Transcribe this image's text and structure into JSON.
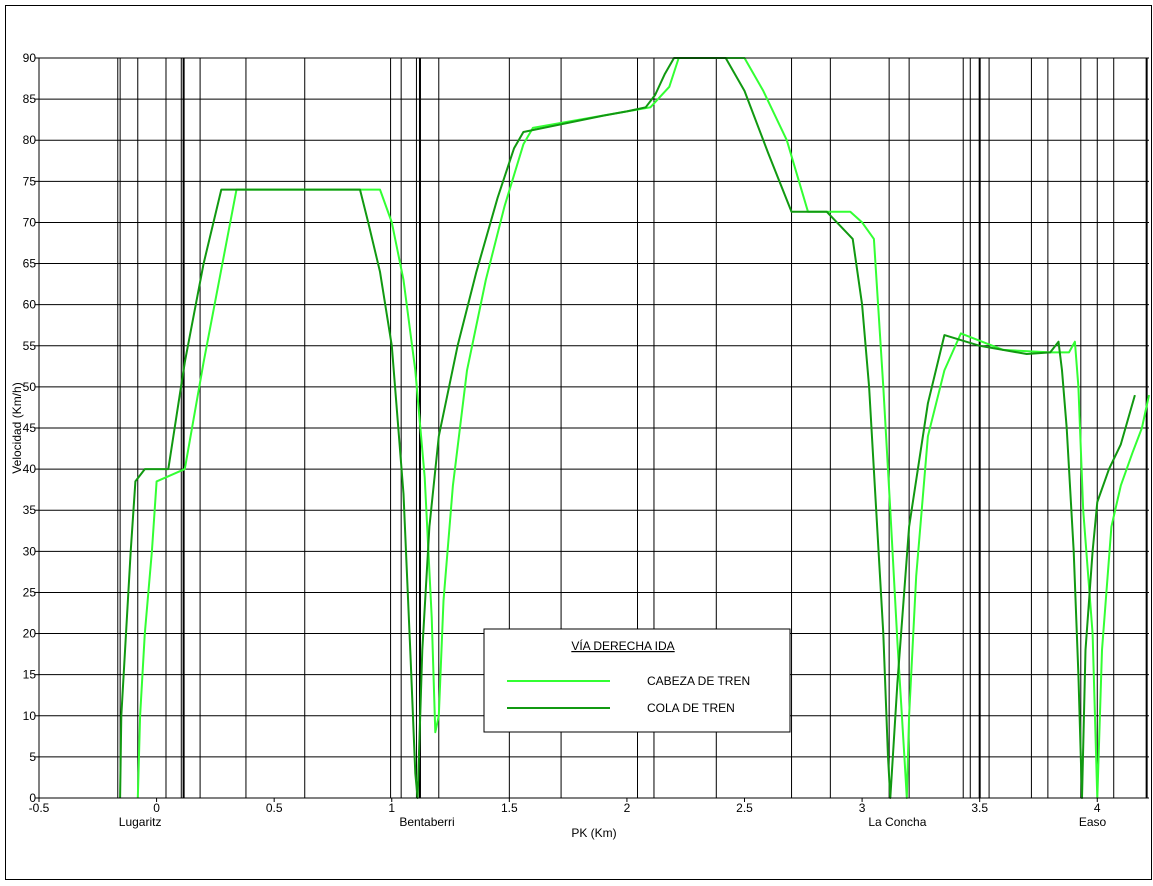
{
  "chart_data": {
    "type": "line",
    "title": "",
    "xlabel": "PK (Km)",
    "ylabel": "Velocidad (Km/h)",
    "xlim": [
      -0.5,
      4.22
    ],
    "ylim": [
      0,
      90
    ],
    "x_ticks": [
      -0.5,
      0,
      0.5,
      1,
      1.5,
      2,
      2.5,
      3,
      3.5,
      4
    ],
    "x_tick_labels": [
      "-0.5",
      "0",
      "0.5",
      "1",
      "1.5",
      "2",
      "2.5",
      "3",
      "3.5",
      "4"
    ],
    "y_ticks": [
      0,
      5,
      10,
      15,
      20,
      25,
      30,
      35,
      40,
      45,
      50,
      55,
      60,
      65,
      70,
      75,
      80,
      85,
      90
    ],
    "y_tick_labels": [
      "0",
      "5",
      "10",
      "15",
      "20",
      "25",
      "30",
      "35",
      "40",
      "45",
      "50",
      "55",
      "60",
      "65",
      "70",
      "75",
      "80",
      "85",
      "90"
    ],
    "horizontal_grid": true,
    "vertical_markers": [
      {
        "x": -0.165,
        "bold": false
      },
      {
        "x": -0.155,
        "bold": false
      },
      {
        "x": -0.08,
        "bold": false
      },
      {
        "x": 0.04,
        "bold": false
      },
      {
        "x": 0.105,
        "bold": false
      },
      {
        "x": 0.115,
        "bold": true
      },
      {
        "x": 0.185,
        "bold": false
      },
      {
        "x": 0.38,
        "bold": false
      },
      {
        "x": 0.63,
        "bold": false
      },
      {
        "x": 0.995,
        "bold": false
      },
      {
        "x": 1.04,
        "bold": false
      },
      {
        "x": 1.105,
        "bold": false
      },
      {
        "x": 1.12,
        "bold": true
      },
      {
        "x": 1.2,
        "bold": false
      },
      {
        "x": 1.5,
        "bold": false
      },
      {
        "x": 1.72,
        "bold": false
      },
      {
        "x": 2.045,
        "bold": false
      },
      {
        "x": 2.115,
        "bold": false
      },
      {
        "x": 2.38,
        "bold": false
      },
      {
        "x": 2.7,
        "bold": false
      },
      {
        "x": 2.865,
        "bold": false
      },
      {
        "x": 3.115,
        "bold": false
      },
      {
        "x": 3.2,
        "bold": false
      },
      {
        "x": 3.43,
        "bold": false
      },
      {
        "x": 3.46,
        "bold": false
      },
      {
        "x": 3.5,
        "bold": true
      },
      {
        "x": 3.54,
        "bold": false
      },
      {
        "x": 3.72,
        "bold": false
      },
      {
        "x": 3.79,
        "bold": false
      },
      {
        "x": 3.93,
        "bold": false
      },
      {
        "x": 4.0,
        "bold": false
      },
      {
        "x": 4.07,
        "bold": false
      },
      {
        "x": 4.21,
        "bold": true
      }
    ],
    "stations": [
      {
        "name": "Lugaritz",
        "x": -0.07
      },
      {
        "name": "Bentaberri",
        "x": 1.15
      },
      {
        "name": "La Concha",
        "x": 3.15
      },
      {
        "name": "Easo",
        "x": 3.98
      }
    ],
    "series": [
      {
        "name": "CABEZA DE TREN",
        "color": "#33ff33",
        "x": [
          -0.08,
          -0.07,
          -0.05,
          -0.02,
          0.0,
          0.12,
          0.2,
          0.28,
          0.34,
          0.95,
          1.0,
          1.05,
          1.1,
          1.14,
          1.17,
          1.185,
          1.2,
          1.22,
          1.26,
          1.32,
          1.4,
          1.48,
          1.56,
          1.6,
          2.0,
          2.1,
          2.18,
          2.22,
          2.5,
          2.58,
          2.68,
          2.77,
          2.95,
          3.0,
          3.05,
          3.09,
          3.12,
          3.15,
          3.18,
          3.19,
          3.2,
          3.23,
          3.28,
          3.35,
          3.42,
          3.6,
          3.8,
          3.88,
          3.905,
          3.92,
          3.94,
          3.98,
          4.0,
          4.02,
          4.06,
          4.1,
          4.15,
          4.19,
          4.22
        ],
        "y": [
          0,
          10,
          20,
          30,
          38.5,
          40,
          53,
          65,
          74,
          74,
          70,
          63,
          52,
          39,
          22,
          8,
          10,
          24,
          38,
          52,
          63,
          72,
          79.5,
          81.5,
          83.5,
          84,
          86.5,
          90,
          90,
          86,
          80,
          71.3,
          71.3,
          70,
          68,
          50,
          35,
          19,
          5,
          0,
          10,
          27,
          44,
          52,
          56.5,
          54.5,
          54.2,
          54.2,
          55.5,
          50,
          35,
          20,
          0,
          18,
          33,
          38,
          42,
          45,
          49
        ]
      },
      {
        "name": "COLA DE TREN",
        "color": "#119911",
        "x": [
          -0.155,
          -0.15,
          -0.13,
          -0.11,
          -0.09,
          -0.05,
          0.05,
          0.12,
          0.2,
          0.275,
          0.865,
          0.9,
          0.95,
          1.0,
          1.05,
          1.08,
          1.1,
          1.11,
          1.13,
          1.16,
          1.2,
          1.28,
          1.36,
          1.45,
          1.52,
          1.56,
          1.9,
          2.0,
          2.08,
          2.12,
          2.16,
          2.2,
          2.42,
          2.5,
          2.6,
          2.7,
          2.85,
          2.91,
          2.96,
          3.0,
          3.03,
          3.06,
          3.09,
          3.11,
          3.12,
          3.15,
          3.2,
          3.28,
          3.35,
          3.5,
          3.7,
          3.8,
          3.835,
          3.85,
          3.87,
          3.9,
          3.92,
          3.935,
          3.95,
          3.98,
          4.0,
          4.05,
          4.1,
          4.16
        ],
        "y": [
          0,
          10,
          20,
          30,
          38.5,
          40,
          40,
          53,
          65,
          74,
          74,
          70,
          64,
          55,
          37,
          17,
          3,
          0,
          18,
          33,
          44,
          55,
          64,
          73,
          79,
          81,
          83,
          83.5,
          84,
          85.5,
          88,
          90,
          90,
          86,
          78.5,
          71.3,
          71.3,
          69.5,
          68,
          60,
          50,
          35,
          20,
          5,
          0,
          14,
          33,
          48,
          56.3,
          55,
          54,
          54.2,
          55.5,
          52,
          45,
          30,
          15,
          0,
          18,
          30,
          36,
          40,
          43,
          49
        ]
      }
    ],
    "legend": {
      "title": "VÍA DERECHA IDA",
      "placement": "bottom-center",
      "entries": [
        "CABEZA DE TREN",
        "COLA DE TREN"
      ]
    }
  }
}
